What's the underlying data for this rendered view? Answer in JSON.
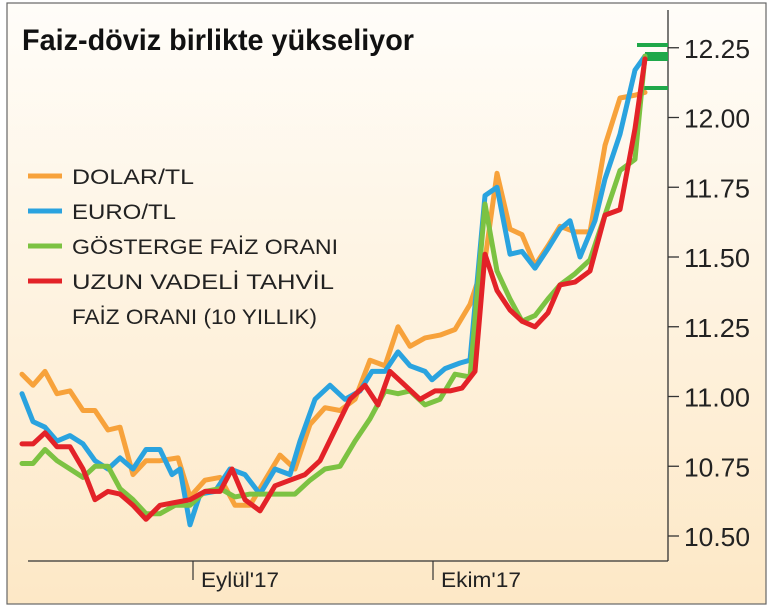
{
  "chart_data": {
    "type": "line",
    "title": "Faiz-döviz birlikte yükseliyor",
    "xlabel": "",
    "ylabel": "",
    "ylim": [
      10.45,
      12.3
    ],
    "xlim": [
      0,
      62.5
    ],
    "yticks": [
      "12.25",
      "12.00",
      "11.75",
      "11.50",
      "11.25",
      "11.00",
      "10.75",
      "10.50"
    ],
    "ytick_values": [
      12.25,
      12.0,
      11.75,
      11.5,
      11.25,
      11.0,
      10.75,
      10.5
    ],
    "xticks": [
      {
        "label": "Eylül'17",
        "x": 17.1
      },
      {
        "label": "Ekim'17",
        "x": 41.1
      }
    ],
    "grid": false,
    "legend_position": "left",
    "series": [
      {
        "name": "DOLAR/TL",
        "color": "#f7a23b",
        "points": [
          [
            0,
            11.08
          ],
          [
            1.1,
            11.04
          ],
          [
            2.3,
            11.09
          ],
          [
            3.5,
            11.01
          ],
          [
            4.8,
            11.02
          ],
          [
            6.1,
            10.95
          ],
          [
            7.3,
            10.95
          ],
          [
            8.6,
            10.88
          ],
          [
            9.8,
            10.89
          ],
          [
            11.1,
            10.72
          ],
          [
            12.4,
            10.77
          ],
          [
            13.8,
            10.77
          ],
          [
            15.6,
            10.78
          ],
          [
            16.8,
            10.64
          ],
          [
            18.3,
            10.7
          ],
          [
            19.8,
            10.71
          ],
          [
            21.3,
            10.61
          ],
          [
            22.8,
            10.61
          ],
          [
            24.3,
            10.7
          ],
          [
            25.8,
            10.79
          ],
          [
            27.3,
            10.74
          ],
          [
            28.8,
            10.9
          ],
          [
            30.3,
            10.96
          ],
          [
            31.8,
            10.95
          ],
          [
            33.3,
            10.99
          ],
          [
            34.8,
            11.13
          ],
          [
            36.3,
            11.11
          ],
          [
            37.6,
            11.25
          ],
          [
            38.8,
            11.18
          ],
          [
            40.3,
            11.21
          ],
          [
            41.8,
            11.22
          ],
          [
            43.3,
            11.24
          ],
          [
            44.8,
            11.33
          ],
          [
            46.3,
            11.49
          ],
          [
            47.5,
            11.8
          ],
          [
            48.8,
            11.6
          ],
          [
            50,
            11.58
          ],
          [
            51.3,
            11.47
          ],
          [
            52.6,
            11.54
          ],
          [
            53.8,
            11.61
          ],
          [
            55.3,
            11.59
          ],
          [
            56.8,
            11.59
          ],
          [
            58.3,
            11.9
          ],
          [
            59.8,
            12.07
          ],
          [
            61.3,
            12.08
          ],
          [
            62.3,
            12.09
          ]
        ]
      },
      {
        "name": "EURO/TL",
        "color": "#2aa3df",
        "points": [
          [
            0,
            11.01
          ],
          [
            1.1,
            10.91
          ],
          [
            2.3,
            10.89
          ],
          [
            3.5,
            10.84
          ],
          [
            4.8,
            10.86
          ],
          [
            6.1,
            10.83
          ],
          [
            7.3,
            10.77
          ],
          [
            8.6,
            10.74
          ],
          [
            9.8,
            10.78
          ],
          [
            11.1,
            10.74
          ],
          [
            12.4,
            10.81
          ],
          [
            13.8,
            10.81
          ],
          [
            15,
            10.72
          ],
          [
            15.8,
            10.74
          ],
          [
            16.8,
            10.54
          ],
          [
            17.8,
            10.65
          ],
          [
            19.3,
            10.66
          ],
          [
            20.8,
            10.74
          ],
          [
            22.3,
            10.72
          ],
          [
            23.8,
            10.65
          ],
          [
            25.3,
            10.74
          ],
          [
            26.8,
            10.72
          ],
          [
            27.8,
            10.84
          ],
          [
            29.3,
            10.99
          ],
          [
            30.8,
            11.04
          ],
          [
            32.3,
            10.99
          ],
          [
            33.8,
            11.02
          ],
          [
            35,
            11.09
          ],
          [
            36.3,
            11.09
          ],
          [
            37.6,
            11.16
          ],
          [
            38.8,
            11.11
          ],
          [
            40.3,
            11.09
          ],
          [
            41,
            11.06
          ],
          [
            42.3,
            11.1
          ],
          [
            43.8,
            11.12
          ],
          [
            44.8,
            11.13
          ],
          [
            46.3,
            11.72
          ],
          [
            47.5,
            11.75
          ],
          [
            48.8,
            11.51
          ],
          [
            50,
            11.52
          ],
          [
            51.3,
            11.46
          ],
          [
            52.6,
            11.53
          ],
          [
            53.8,
            11.6
          ],
          [
            54.8,
            11.63
          ],
          [
            55.8,
            11.5
          ],
          [
            57.3,
            11.63
          ],
          [
            58.3,
            11.78
          ],
          [
            59.8,
            11.94
          ],
          [
            61.3,
            12.17
          ],
          [
            62.3,
            12.22
          ]
        ]
      },
      {
        "name": "GÖSTERGE FAİZ ORANI",
        "color": "#7cc242",
        "points": [
          [
            0,
            10.76
          ],
          [
            1.1,
            10.76
          ],
          [
            2.3,
            10.81
          ],
          [
            3.5,
            10.77
          ],
          [
            4.8,
            10.74
          ],
          [
            6.1,
            10.71
          ],
          [
            7.3,
            10.75
          ],
          [
            8.6,
            10.75
          ],
          [
            9.8,
            10.67
          ],
          [
            11.1,
            10.63
          ],
          [
            12.4,
            10.58
          ],
          [
            13.8,
            10.58
          ],
          [
            15.3,
            10.61
          ],
          [
            16.8,
            10.61
          ],
          [
            18.3,
            10.66
          ],
          [
            19.8,
            10.67
          ],
          [
            21.3,
            10.64
          ],
          [
            22.8,
            10.65
          ],
          [
            24.3,
            10.65
          ],
          [
            25.8,
            10.65
          ],
          [
            27.3,
            10.65
          ],
          [
            28.8,
            10.7
          ],
          [
            30.3,
            10.74
          ],
          [
            31.8,
            10.75
          ],
          [
            33.3,
            10.84
          ],
          [
            34.8,
            10.92
          ],
          [
            36.3,
            11.02
          ],
          [
            37.6,
            11.01
          ],
          [
            38.8,
            11.02
          ],
          [
            40.3,
            10.97
          ],
          [
            41.8,
            10.99
          ],
          [
            43.3,
            11.08
          ],
          [
            44.8,
            11.07
          ],
          [
            46.3,
            11.69
          ],
          [
            47.5,
            11.45
          ],
          [
            48.8,
            11.35
          ],
          [
            50,
            11.27
          ],
          [
            51.3,
            11.29
          ],
          [
            52.6,
            11.35
          ],
          [
            53.8,
            11.4
          ],
          [
            55.3,
            11.44
          ],
          [
            56.8,
            11.49
          ],
          [
            58.3,
            11.65
          ],
          [
            59.8,
            11.81
          ],
          [
            61.3,
            11.85
          ],
          [
            62.3,
            12.22
          ]
        ]
      },
      {
        "name": "UZUN VADELİ TAHVİL FAİZ ORANI (10 YILLIK)",
        "color": "#e32228",
        "points": [
          [
            0,
            10.83
          ],
          [
            1.1,
            10.83
          ],
          [
            2.3,
            10.87
          ],
          [
            3.5,
            10.82
          ],
          [
            4.8,
            10.82
          ],
          [
            6.1,
            10.74
          ],
          [
            7.3,
            10.63
          ],
          [
            8.6,
            10.66
          ],
          [
            9.8,
            10.65
          ],
          [
            11.1,
            10.61
          ],
          [
            12.4,
            10.56
          ],
          [
            13.8,
            10.61
          ],
          [
            15.3,
            10.62
          ],
          [
            16.8,
            10.63
          ],
          [
            18.3,
            10.66
          ],
          [
            19.8,
            10.66
          ],
          [
            21,
            10.74
          ],
          [
            22.3,
            10.63
          ],
          [
            23.8,
            10.59
          ],
          [
            25.3,
            10.68
          ],
          [
            26.8,
            10.7
          ],
          [
            28.3,
            10.72
          ],
          [
            29.8,
            10.77
          ],
          [
            31.3,
            10.88
          ],
          [
            32.8,
            10.99
          ],
          [
            34.3,
            11.04
          ],
          [
            35.6,
            10.97
          ],
          [
            36.8,
            11.09
          ],
          [
            38.3,
            11.04
          ],
          [
            39.8,
            10.99
          ],
          [
            41.3,
            11.02
          ],
          [
            42.8,
            11.02
          ],
          [
            44,
            11.03
          ],
          [
            45.3,
            11.09
          ],
          [
            46.3,
            11.51
          ],
          [
            47.5,
            11.38
          ],
          [
            48.8,
            11.31
          ],
          [
            50,
            11.27
          ],
          [
            51.3,
            11.25
          ],
          [
            52.6,
            11.3
          ],
          [
            53.8,
            11.4
          ],
          [
            55.3,
            11.41
          ],
          [
            56.8,
            11.45
          ],
          [
            58.3,
            11.65
          ],
          [
            59.8,
            11.67
          ],
          [
            61.3,
            11.96
          ],
          [
            62.3,
            12.21
          ]
        ]
      }
    ],
    "legend": {
      "items": [
        {
          "line1": "DOLAR/TL",
          "color": "#f7a23b"
        },
        {
          "line1": "EURO/TL",
          "color": "#2aa3df"
        },
        {
          "line1": "GÖSTERGE FAİZ ORANI",
          "color": "#7cc242"
        },
        {
          "line1": "UZUN VADELİ TAHVİL",
          "line2": "FAİZ ORANI (10 YILLIK)",
          "color": "#e32228"
        }
      ]
    },
    "marker_color": "#1fa84a"
  }
}
